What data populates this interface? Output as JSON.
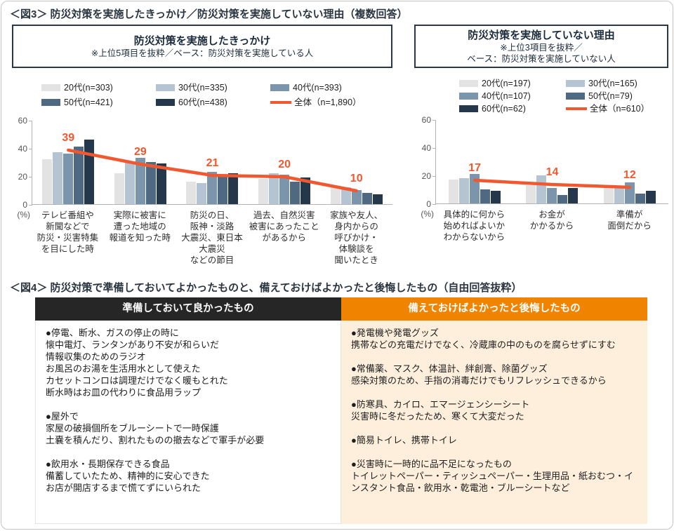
{
  "page": {
    "fig3_title": "＜図3＞ 防災対策を実施したきっかけ／防災対策を実施していない理由（複数回答）",
    "fig4_title": "＜図4＞ 防災対策で準備しておいてよかったものと、備えておけばよかったと後悔したもの（自由回答抜粋）"
  },
  "colors": {
    "series": [
      "#e3e3e3",
      "#b5c4d3",
      "#7b96ac",
      "#506982",
      "#25374a"
    ],
    "total_line": "#f2582f",
    "header_box_border": "#2a3747",
    "table_header_good_bg": "#262626",
    "table_header_regret_bg": "#f08300",
    "table_regret_cell_bg": "#fdefdb"
  },
  "chart_data": [
    {
      "type": "bar",
      "title": "防災対策を実施したきっかけ",
      "note_lines": [
        "※上位5項目を抜粋／ベース：防災対策を実施している人"
      ],
      "ylabel": "(%)",
      "ylim": [
        0,
        60
      ],
      "yticks": [
        0,
        20,
        40,
        60
      ],
      "grid": false,
      "legend_position": "top",
      "categories": [
        "テレビ番組や新聞などで防災・災害特集を目にした時",
        "実際に被害に遭った地域の報道を知った時",
        "防災の日、阪神・淡路大震災、東日本大震災などの節目",
        "過去、自然災害被害にあったことがあるから",
        "家族や友人、身内からの呼びかけ・体験談を聞いたとき"
      ],
      "category_lines": [
        [
          "テレビ番組や",
          "新聞などで",
          "防災・災害特集",
          "を目にした時"
        ],
        [
          "実際に被害に",
          "遭った地域の",
          "報道を知った時"
        ],
        [
          "防災の日、",
          "阪神・淡路",
          "大震災、東日本",
          "大震災",
          "などの節目"
        ],
        [
          "過去、自然災害",
          "被害にあったこと",
          "があるから"
        ],
        [
          "家族や友人、",
          "身内からの",
          "呼びかけ・",
          "体験談を",
          "聞いたとき"
        ]
      ],
      "series": [
        {
          "name": "20代(n=303)",
          "values": [
            32,
            22,
            16,
            18,
            12
          ]
        },
        {
          "name": "30代(n=335)",
          "values": [
            37,
            30,
            15,
            22,
            12
          ]
        },
        {
          "name": "40代(n=393)",
          "values": [
            36,
            33,
            23,
            21,
            10
          ]
        },
        {
          "name": "50代(n=421)",
          "values": [
            41,
            30,
            21,
            16,
            8
          ]
        },
        {
          "name": "60代(n=438)",
          "values": [
            46,
            29,
            22,
            19,
            7
          ]
        }
      ],
      "total": {
        "name": "全体（n=1,890）",
        "values": [
          39,
          29,
          21,
          20,
          10
        ]
      }
    },
    {
      "type": "bar",
      "title": "防災対策を実施していない理由",
      "note_lines": [
        "※上位3項目を抜粋／",
        "ベース：防災対策を実施していない人"
      ],
      "ylabel": "(%)",
      "ylim": [
        0,
        60
      ],
      "yticks": [
        0,
        20,
        40,
        60
      ],
      "grid": false,
      "legend_position": "top",
      "categories": [
        "具体的に何から始めればよいかわからないから",
        "お金がかかるから",
        "準備が面倒だから"
      ],
      "category_lines": [
        [
          "具体的に何から",
          "始めればよいか",
          "わからないから"
        ],
        [
          "お金が",
          "かかるから"
        ],
        [
          "準備が",
          "面倒だから"
        ]
      ],
      "series": [
        {
          "name": "20代(n=197)",
          "values": [
            17,
            13,
            11
          ]
        },
        {
          "name": "30代(n=165)",
          "values": [
            18,
            20,
            11
          ]
        },
        {
          "name": "40代(n=107)",
          "values": [
            21,
            11,
            15
          ]
        },
        {
          "name": "50代(n=79)",
          "values": [
            10,
            6,
            7
          ]
        },
        {
          "name": "60代(n=62)",
          "values": [
            9,
            11,
            9
          ]
        }
      ],
      "total": {
        "name": "全体（n=610）",
        "values": [
          17,
          14,
          12
        ]
      }
    }
  ],
  "table": {
    "headers": [
      "準備しておいて良かったもの",
      "備えておけばよかったと後悔したもの"
    ],
    "left_blocks": [
      [
        "●停電、断水、ガスの停止の時に",
        "懐中電灯、ランタンがあり不安が和らいだ",
        "情報収集のためのラジオ",
        "お風呂のお湯を生活用水として使えた",
        "カセットコンロは調理だけでなく暖もとれた",
        "断水時はお皿の代わりに食品用ラップ"
      ],
      [
        "●屋外で",
        "家屋の破損個所をブルーシートで一時保護",
        "土嚢を積んだり、割れたものの撤去などで軍手が必要"
      ],
      [
        "●飲用水・長期保存できる食品",
        "備蓄していたため、精神的に安心できた",
        "お店が開店するまで慌てずにいられた"
      ]
    ],
    "right_blocks": [
      [
        "●発電機や発電グッズ",
        "携帯などの充電だけでなく、冷蔵庫の中のものを腐らせずにすむ"
      ],
      [
        "●常備薬、マスク、体温計、絆創膏、除菌グッズ",
        "感染対策のため、手指の消毒だけでもリフレッシュできるから"
      ],
      [
        "●防寒具、カイロ、エマージェンシーシート",
        "災害時に冬だったため、寒くて大変だった"
      ],
      [
        "●簡易トイレ、携帯トイレ"
      ],
      [
        "●災害時に一時的に品不足になったもの",
        "トイレットペーパー・ティッシュペーパー・生理用品・紙おむつ・インスタント食品・飲用水・乾電池・ブルーシートなど"
      ]
    ]
  }
}
